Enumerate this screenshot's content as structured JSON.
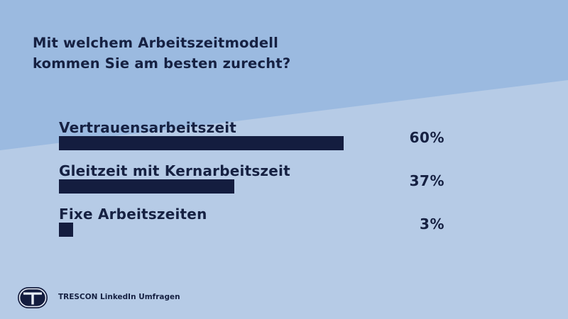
{
  "title_lines": [
    "Mit welchem Arbeitszeitmodell",
    "kommen Sie am besten zurecht?"
  ],
  "footer": "TRESCON LinkedIn Umfragen",
  "colors": {
    "background_light": "#b6cbe6",
    "background_dark": "#9bbae0",
    "bar": "#141d3f",
    "text": "#162142"
  },
  "chart_data": {
    "type": "bar",
    "orientation": "horizontal",
    "title": "Mit welchem Arbeitszeitmodell kommen Sie am besten zurecht?",
    "categories": [
      "Vertrauensarbeitszeit",
      "Gleitzeit mit Kernarbeitszeit",
      "Fixe Arbeitszeiten"
    ],
    "values": [
      60,
      37,
      3
    ],
    "value_labels": [
      "60%",
      "37%",
      "3%"
    ],
    "unit": "%",
    "xlim": [
      0,
      100
    ],
    "grid": false,
    "legend": "none"
  }
}
